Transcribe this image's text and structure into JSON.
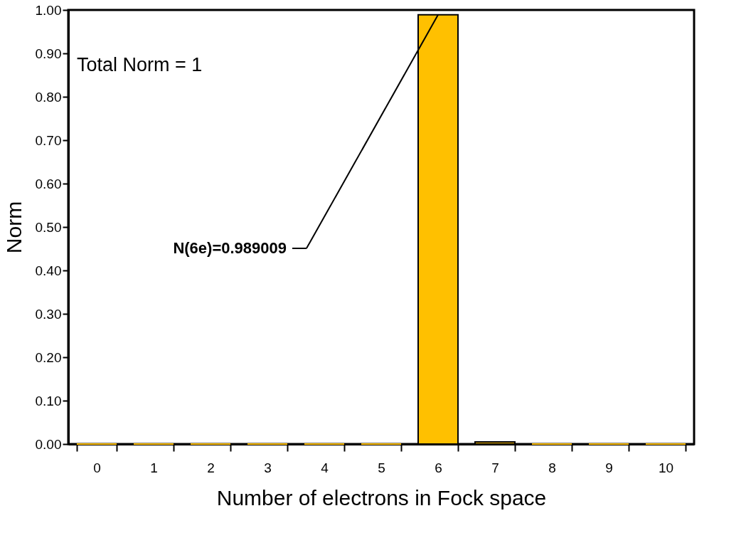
{
  "chart_data": {
    "type": "bar",
    "xlabel": "Number of electrons in Fock space",
    "ylabel": "Norm",
    "categories": [
      "0",
      "1",
      "2",
      "3",
      "4",
      "5",
      "6",
      "7",
      "8",
      "9",
      "10"
    ],
    "values": [
      0,
      0,
      0,
      0,
      0,
      0,
      0.989009,
      0.005,
      0,
      0,
      0
    ],
    "color": "#ffc000",
    "ylim": [
      0,
      1
    ],
    "yticks": [
      {
        "value": 0,
        "label": "0.00"
      },
      {
        "value": 0.1,
        "label": "0.10"
      },
      {
        "value": 0.2,
        "label": "0.20"
      },
      {
        "value": 0.3,
        "label": "0.30"
      },
      {
        "value": 0.4,
        "label": "0.40"
      },
      {
        "value": 0.5,
        "label": "0.50"
      },
      {
        "value": 0.6,
        "label": "0.60"
      },
      {
        "value": 0.7,
        "label": "0.70"
      },
      {
        "value": 0.8,
        "label": "0.80"
      },
      {
        "value": 0.9,
        "label": "0.90"
      },
      {
        "value": 1,
        "label": "1.00"
      }
    ],
    "grid": false,
    "annotations": [
      "Total Norm = 1",
      {
        "text": "N(6e)=0.989009",
        "x": "6",
        "y": 0.989009
      }
    ]
  }
}
